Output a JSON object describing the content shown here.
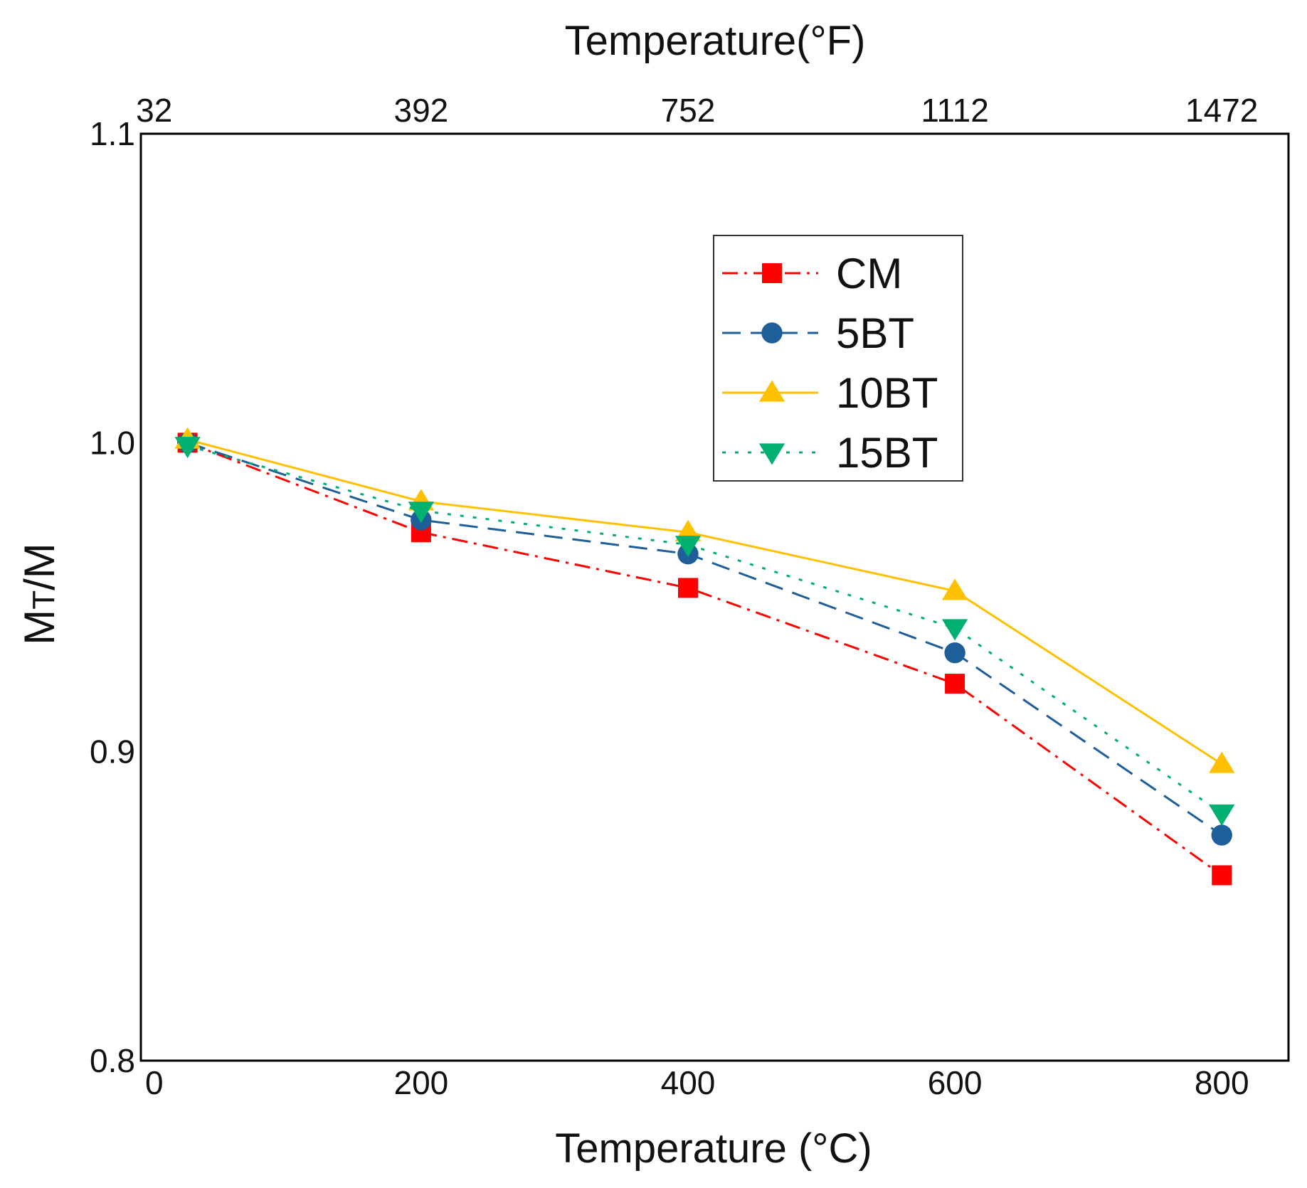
{
  "chart_data": {
    "type": "line",
    "title": "",
    "xlabel": "Temperature (°C)",
    "xlabel_top": "Temperature(°F)",
    "ylabel": "MT/M",
    "ylabel_main": "M",
    "ylabel_sub": "T",
    "ylabel_tail": "/M",
    "xlim": [
      -10,
      850
    ],
    "ylim": [
      0.8,
      1.1
    ],
    "x_ticks": [
      0,
      200,
      400,
      600,
      800
    ],
    "x_tick_labels": [
      "0",
      "200",
      "400",
      "600",
      "800"
    ],
    "top_tick_labels": [
      "32",
      "392",
      "752",
      "1112",
      "1472"
    ],
    "y_ticks": [
      0.8,
      0.9,
      1.0,
      1.1
    ],
    "y_tick_labels": [
      "0.8",
      "0.9",
      "1.0",
      "1.1"
    ],
    "grid": false,
    "legend_position": "top-right",
    "x": [
      25,
      200,
      400,
      600,
      800
    ],
    "series": [
      {
        "name": "CM",
        "color": "#ff0000",
        "dash": "dash-dot",
        "marker": "square",
        "values": [
          1.0,
          0.971,
          0.953,
          0.922,
          0.86
        ]
      },
      {
        "name": "5BT",
        "color": "#1f5f99",
        "dash": "dashed",
        "marker": "circle",
        "values": [
          1.0,
          0.975,
          0.964,
          0.932,
          0.873
        ]
      },
      {
        "name": "10BT",
        "color": "#ffc000",
        "dash": "solid",
        "marker": "triangle-up",
        "values": [
          1.001,
          0.981,
          0.971,
          0.952,
          0.896
        ]
      },
      {
        "name": "15BT",
        "color": "#00b070",
        "dash": "dotted",
        "marker": "triangle-down",
        "values": [
          0.999,
          0.978,
          0.967,
          0.94,
          0.88
        ]
      }
    ]
  }
}
